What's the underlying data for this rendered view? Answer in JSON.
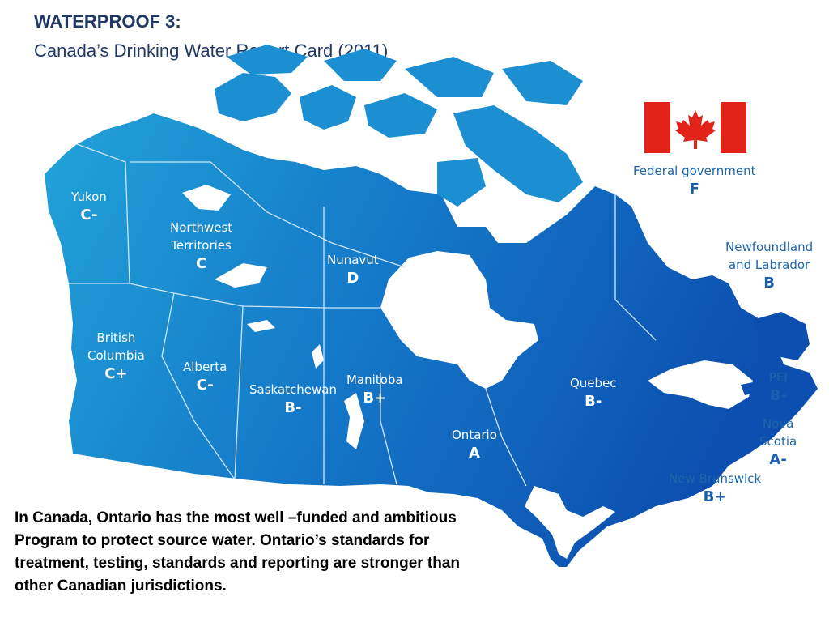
{
  "header": {
    "title": "WATERPROOF 3:",
    "subtitle": "Canada’s Drinking Water Report Card (2011)"
  },
  "colors": {
    "west": "#22a3d9",
    "east": "#0d4fb0",
    "water": "#ffffff",
    "border": "#cfe7f7",
    "flag_red": "#e2231a"
  },
  "regions": [
    {
      "key": "yukon",
      "name": "Yukon",
      "grade": "C-"
    },
    {
      "key": "nwt",
      "name_lines": [
        "Northwest",
        "Territories"
      ],
      "grade": "C"
    },
    {
      "key": "nunavut",
      "name": "Nunavut",
      "grade": "D"
    },
    {
      "key": "bc",
      "name_lines": [
        "British",
        "Columbia"
      ],
      "grade": "C+"
    },
    {
      "key": "alberta",
      "name": "Alberta",
      "grade": "C-"
    },
    {
      "key": "saskatchewan",
      "name": "Saskatchewan",
      "grade": "B-"
    },
    {
      "key": "manitoba",
      "name": "Manitoba",
      "grade": "B+"
    },
    {
      "key": "ontario",
      "name": "Ontario",
      "grade": "A"
    },
    {
      "key": "quebec",
      "name": "Quebec",
      "grade": "B-"
    },
    {
      "key": "nl",
      "name_lines": [
        "Newfoundland",
        "and Labrador"
      ],
      "grade": "B"
    },
    {
      "key": "pei",
      "name": "PEI",
      "grade": "B-"
    },
    {
      "key": "ns",
      "name_lines": [
        "Nova",
        "Scotia"
      ],
      "grade": "A-"
    },
    {
      "key": "nb",
      "name": "New Brunswick",
      "grade": "B+"
    },
    {
      "key": "federal",
      "name": "Federal government",
      "grade": "F"
    }
  ],
  "flag_icon": "canada-flag-icon",
  "caption_lines": [
    "In Canada, Ontario has the most well –funded and ambitious",
    "Program to protect source water. Ontario’s standards for",
    "treatment, testing, standards and reporting are stronger than",
    "other Canadian jurisdictions."
  ]
}
